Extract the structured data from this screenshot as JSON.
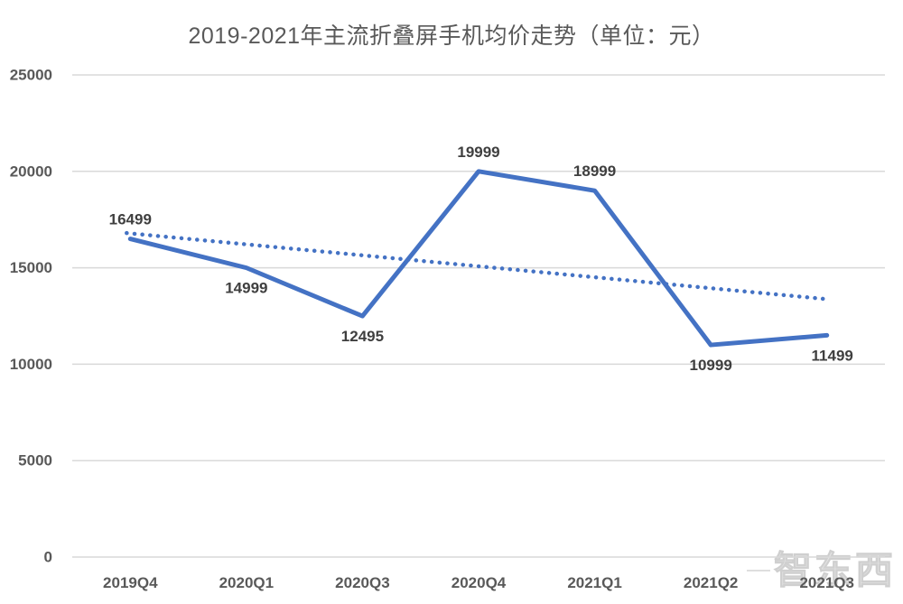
{
  "title": "2019-2021年主流折叠屏手机均价走势（单位：元）",
  "watermark": {
    "text": "智东西"
  },
  "colors": {
    "line": "#4472C4",
    "trendline": "#4472C4",
    "gridline": "#D9D9D9",
    "axis_text": "#595959",
    "data_label_text": "#3F3F3F",
    "title_text": "#595959",
    "watermark_text": "#DEDEDE"
  },
  "chart_data": {
    "type": "line",
    "title": "2019-2021年主流折叠屏手机均价走势（单位：元）",
    "unit": "元",
    "categories": [
      "2019Q4",
      "2020Q1",
      "2020Q3",
      "2020Q4",
      "2021Q1",
      "2021Q2",
      "2021Q3"
    ],
    "series": [
      {
        "name": "均价",
        "style": "solid",
        "values": [
          16499,
          14999,
          12495,
          19999,
          18999,
          10999,
          11499
        ]
      },
      {
        "name": "趋势线",
        "style": "dotted",
        "start_value": 16800,
        "end_value": 13390
      }
    ],
    "label_placement": [
      "above",
      "below",
      "below",
      "above",
      "above",
      "below",
      "below"
    ],
    "yticks": [
      0,
      5000,
      10000,
      15000,
      20000,
      25000
    ],
    "ylim": [
      0,
      25000
    ],
    "grid": true,
    "legend": "none"
  }
}
